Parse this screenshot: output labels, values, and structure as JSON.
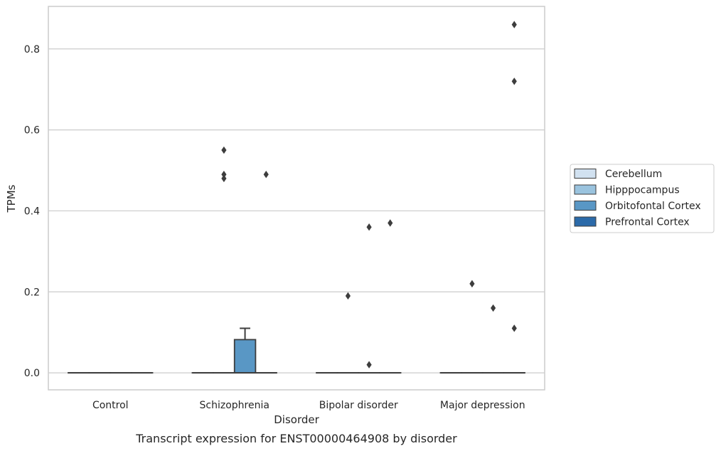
{
  "chart_data": {
    "type": "box",
    "xlabel": "Disorder",
    "ylabel": "TPMs",
    "caption": "Transcript expression for ENST00000464908 by disorder",
    "ylim": [
      -0.042,
      0.905
    ],
    "yticks": [
      0.0,
      0.2,
      0.4,
      0.6,
      0.8
    ],
    "ytick_labels": [
      "0.0",
      "0.2",
      "0.4",
      "0.6",
      "0.8"
    ],
    "grid": "horizontal",
    "legend_position": "right-middle",
    "categories": [
      "Control",
      "Schizophrenia",
      "Bipolar disorder",
      "Major depression"
    ],
    "series": [
      {
        "name": "Cerebellum",
        "color": "#d1e1f0",
        "boxes": [
          {
            "q1": 0,
            "median": 0,
            "q3": 0,
            "whisker_low": 0,
            "whisker_high": 0,
            "outliers": []
          },
          {
            "q1": 0,
            "median": 0,
            "q3": 0,
            "whisker_low": 0,
            "whisker_high": 0,
            "outliers": []
          },
          {
            "q1": 0,
            "median": 0,
            "q3": 0,
            "whisker_low": 0,
            "whisker_high": 0,
            "outliers": []
          },
          {
            "q1": 0,
            "median": 0,
            "q3": 0,
            "whisker_low": 0,
            "whisker_high": 0,
            "outliers": []
          }
        ]
      },
      {
        "name": "Hipppocampus",
        "color": "#9ac3de",
        "boxes": [
          {
            "q1": 0,
            "median": 0,
            "q3": 0,
            "whisker_low": 0,
            "whisker_high": 0,
            "outliers": []
          },
          {
            "q1": 0,
            "median": 0,
            "q3": 0,
            "whisker_low": 0,
            "whisker_high": 0,
            "outliers": [
              0.55,
              0.48,
              0.49
            ]
          },
          {
            "q1": 0,
            "median": 0,
            "q3": 0,
            "whisker_low": 0,
            "whisker_high": 0,
            "outliers": [
              0.19
            ]
          },
          {
            "q1": 0,
            "median": 0,
            "q3": 0,
            "whisker_low": 0,
            "whisker_high": 0,
            "outliers": [
              0.22
            ]
          }
        ]
      },
      {
        "name": "Orbitofontal Cortex",
        "color": "#5997c5",
        "boxes": [
          {
            "q1": 0,
            "median": 0,
            "q3": 0,
            "whisker_low": 0,
            "whisker_high": 0,
            "outliers": []
          },
          {
            "q1": 0,
            "median": 0,
            "q3": 0.082,
            "whisker_low": 0,
            "whisker_high": 0.11,
            "outliers": []
          },
          {
            "q1": 0,
            "median": 0,
            "q3": 0,
            "whisker_low": 0,
            "whisker_high": 0,
            "outliers": [
              0.36,
              0.02
            ]
          },
          {
            "q1": 0,
            "median": 0,
            "q3": 0,
            "whisker_low": 0,
            "whisker_high": 0,
            "outliers": [
              0.16
            ]
          }
        ]
      },
      {
        "name": "Prefrontal Cortex",
        "color": "#2b6aa9",
        "boxes": [
          {
            "q1": 0,
            "median": 0,
            "q3": 0,
            "whisker_low": 0,
            "whisker_high": 0,
            "outliers": []
          },
          {
            "q1": 0,
            "median": 0,
            "q3": 0,
            "whisker_low": 0,
            "whisker_high": 0,
            "outliers": [
              0.49
            ]
          },
          {
            "q1": 0,
            "median": 0,
            "q3": 0,
            "whisker_low": 0,
            "whisker_high": 0,
            "outliers": [
              0.37
            ]
          },
          {
            "q1": 0,
            "median": 0,
            "q3": 0,
            "whisker_low": 0,
            "whisker_high": 0,
            "outliers": [
              0.86,
              0.72,
              0.11
            ]
          }
        ]
      }
    ]
  }
}
